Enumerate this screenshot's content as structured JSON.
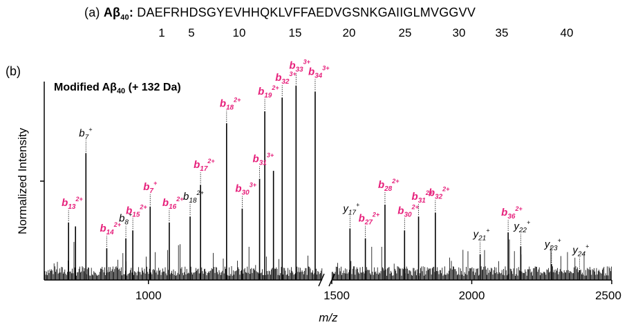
{
  "sequence": {
    "panel": "(a)",
    "label": "Aβ",
    "label_sub": "40",
    "label_colon": ":",
    "residues": "DAEFRHDSGYEVHHQKLVFFAEDVGSNKGAIIGLMVGGVV",
    "positions": [
      "1",
      "5",
      "10",
      "15",
      "20",
      "25",
      "30",
      "35",
      "40"
    ]
  },
  "spectrum": {
    "panel": "(b)",
    "inset_title": "Modified Aβ",
    "inset_title_sub": "40",
    "inset_title_suffix": " (+ 132 Da)"
  },
  "chart_data": {
    "type": "bar",
    "title": "Modified Aβ40 (+ 132 Da)",
    "xlabel": "m/z",
    "ylabel": "Normalized Intensity",
    "x_axis_broken": true,
    "segments": [
      {
        "xlim": [
          700,
          1500
        ],
        "xticks": [
          "1000",
          "1500"
        ]
      },
      {
        "xlim": [
          1500,
          2500
        ],
        "xticks": [
          "1500",
          "2000",
          "2500"
        ]
      }
    ],
    "peaks": [
      {
        "mz": 770,
        "rel": 0.29,
        "ion": "b",
        "num": "13",
        "charge": "2+",
        "color": "#e6207b"
      },
      {
        "mz": 790,
        "rel": 0.27
      },
      {
        "mz": 820,
        "rel": 0.64,
        "ion": "b",
        "num": "7",
        "charge": "+",
        "color": "#000000"
      },
      {
        "mz": 880,
        "rel": 0.16,
        "ion": "b",
        "num": "14",
        "charge": "2+",
        "color": "#e6207b"
      },
      {
        "mz": 935,
        "rel": 0.21,
        "ion": "b",
        "num": "8",
        "charge": "+",
        "color": "#000000"
      },
      {
        "mz": 955,
        "rel": 0.25,
        "ion": "b",
        "num": "15",
        "charge": "2+",
        "color": "#e6207b"
      },
      {
        "mz": 1005,
        "rel": 0.37,
        "ion": "b",
        "num": "7",
        "charge": "+",
        "color": "#e6207b"
      },
      {
        "mz": 1060,
        "rel": 0.29,
        "ion": "b",
        "num": "16",
        "charge": "2+",
        "color": "#e6207b"
      },
      {
        "mz": 1120,
        "rel": 0.32,
        "ion": "b",
        "num": "18",
        "charge": "2+",
        "color": "#000000"
      },
      {
        "mz": 1150,
        "rel": 0.48,
        "ion": "b",
        "num": "17",
        "charge": "2+",
        "color": "#e6207b"
      },
      {
        "mz": 1225,
        "rel": 0.79,
        "ion": "b",
        "num": "18",
        "charge": "2+",
        "color": "#e6207b"
      },
      {
        "mz": 1270,
        "rel": 0.36,
        "ion": "b",
        "num": "30",
        "charge": "3+",
        "color": "#e6207b"
      },
      {
        "mz": 1320,
        "rel": 0.51,
        "ion": "b",
        "num": "31",
        "charge": "3+",
        "color": "#e6207b"
      },
      {
        "mz": 1335,
        "rel": 0.85,
        "ion": "b",
        "num": "19",
        "charge": "2+",
        "color": "#e6207b"
      },
      {
        "mz": 1360,
        "rel": 0.55
      },
      {
        "mz": 1385,
        "rel": 0.92,
        "ion": "b",
        "num": "32",
        "charge": "3+",
        "color": "#e6207b"
      },
      {
        "mz": 1425,
        "rel": 0.98,
        "ion": "b",
        "num": "33",
        "charge": "3+",
        "color": "#e6207b"
      },
      {
        "mz": 1480,
        "rel": 0.95,
        "ion": "b",
        "num": "34",
        "charge": "3+",
        "color": "#e6207b"
      },
      {
        "mz": 1565,
        "rel": 0.26,
        "ion": "y",
        "num": "17",
        "charge": "+",
        "color": "#000000"
      },
      {
        "mz": 1620,
        "rel": 0.21,
        "ion": "b",
        "num": "27",
        "charge": "2+",
        "color": "#e6207b"
      },
      {
        "mz": 1690,
        "rel": 0.38,
        "ion": "b",
        "num": "28",
        "charge": "2+",
        "color": "#e6207b"
      },
      {
        "mz": 1760,
        "rel": 0.25,
        "ion": "b",
        "num": "30",
        "charge": "2+",
        "color": "#e6207b"
      },
      {
        "mz": 1810,
        "rel": 0.32,
        "ion": "b",
        "num": "31",
        "charge": "2+",
        "color": "#e6207b"
      },
      {
        "mz": 1870,
        "rel": 0.34,
        "ion": "b",
        "num": "32",
        "charge": "2+",
        "color": "#e6207b"
      },
      {
        "mz": 2030,
        "rel": 0.13,
        "ion": "y",
        "num": "21",
        "charge": "+",
        "color": "#000000"
      },
      {
        "mz": 2130,
        "rel": 0.24,
        "ion": "b",
        "num": "36",
        "charge": "2+",
        "color": "#e6207b"
      },
      {
        "mz": 2175,
        "rel": 0.17,
        "ion": "y",
        "num": "22",
        "charge": "+",
        "color": "#000000"
      },
      {
        "mz": 2285,
        "rel": 0.08,
        "ion": "y",
        "num": "23",
        "charge": "+",
        "color": "#000000"
      },
      {
        "mz": 2385,
        "rel": 0.05,
        "ion": "y",
        "num": "24",
        "charge": "+",
        "color": "#000000"
      }
    ]
  }
}
